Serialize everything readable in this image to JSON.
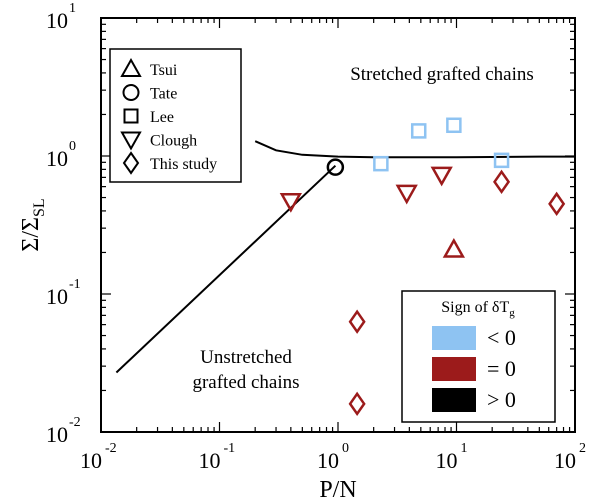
{
  "chart_data": {
    "type": "scatter",
    "xlabel": "P/N",
    "ylabel": "Σ/Σ",
    "ylabel_sub": "SL",
    "x_scale": "log",
    "y_scale": "log",
    "xlim": [
      0.01,
      100
    ],
    "ylim": [
      0.01,
      10
    ],
    "x_ticks": [
      {
        "value": 0.01,
        "base": "10",
        "exp": "-2"
      },
      {
        "value": 0.1,
        "base": "10",
        "exp": "-1"
      },
      {
        "value": 1,
        "base": "10",
        "exp": "0"
      },
      {
        "value": 10,
        "base": "10",
        "exp": "1"
      },
      {
        "value": 100,
        "base": "10",
        "exp": "2"
      }
    ],
    "y_ticks": [
      {
        "value": 0.01,
        "base": "10",
        "exp": "-2"
      },
      {
        "value": 0.1,
        "base": "10",
        "exp": "-1"
      },
      {
        "value": 1,
        "base": "10",
        "exp": "0"
      },
      {
        "value": 10,
        "base": "10",
        "exp": "1"
      }
    ],
    "annotations": {
      "upper": "Stretched grafted chains",
      "lower_line1": "Unstretched",
      "lower_line2": "grafted chains"
    },
    "legend_markers": {
      "placement": "top-left",
      "entries": [
        {
          "marker": "triangle-up",
          "label": "Tsui"
        },
        {
          "marker": "circle",
          "label": "Tate"
        },
        {
          "marker": "square",
          "label": "Lee"
        },
        {
          "marker": "triangle-down",
          "label": "Clough"
        },
        {
          "marker": "diamond",
          "label": "This study"
        }
      ]
    },
    "legend_colors": {
      "placement": "bottom-right",
      "title": "Sign of δT",
      "title_sub": "g",
      "entries": [
        {
          "label": "< 0",
          "color": "#8ec3f2"
        },
        {
          "label": "= 0",
          "color": "#9c1b1b"
        },
        {
          "label": "> 0",
          "color": "#000000"
        }
      ]
    },
    "curves": [
      {
        "points": [
          [
            0.2,
            1.28
          ],
          [
            0.3,
            1.1
          ],
          [
            0.5,
            1.02
          ],
          [
            1,
            0.99
          ],
          [
            2,
            0.98
          ],
          [
            5,
            0.98
          ],
          [
            10,
            0.98
          ],
          [
            50,
            0.99
          ],
          [
            100,
            0.99
          ]
        ]
      },
      {
        "points": [
          [
            0.0135,
            0.027
          ],
          [
            0.95,
            0.85
          ]
        ]
      }
    ],
    "series": [
      {
        "marker": "triangle-up",
        "sign": "= 0",
        "points": [
          [
            9.5,
            0.21
          ]
        ]
      },
      {
        "marker": "circle",
        "sign": "> 0",
        "points": [
          [
            0.95,
            0.83
          ]
        ]
      },
      {
        "marker": "square",
        "sign": "< 0",
        "points": [
          [
            2.3,
            0.88
          ],
          [
            4.8,
            1.52
          ],
          [
            9.5,
            1.67
          ],
          [
            24,
            0.93
          ]
        ]
      },
      {
        "marker": "triangle-down",
        "sign": "= 0",
        "points": [
          [
            0.4,
            0.47
          ],
          [
            3.8,
            0.54
          ],
          [
            7.5,
            0.73
          ]
        ]
      },
      {
        "marker": "diamond",
        "sign": "= 0",
        "points": [
          [
            24,
            0.65
          ],
          [
            70,
            0.45
          ],
          [
            1.45,
            0.063
          ],
          [
            1.45,
            0.016
          ]
        ]
      }
    ]
  }
}
